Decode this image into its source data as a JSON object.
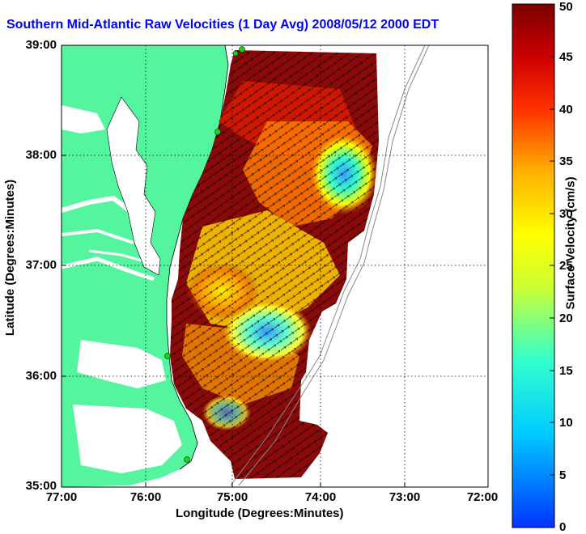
{
  "title": "Southern Mid-Atlantic Raw Velocities (1 Day Avg) 2008/05/12 2000 EDT",
  "xlabel": "Longitude (Degrees:Minutes)",
  "ylabel": "Latitude (Degrees:Minutes)",
  "x_ticks": [
    "77:00",
    "76:00",
    "75:00",
    "74:00",
    "73:00",
    "72:00"
  ],
  "y_ticks": [
    "39:00",
    "38:00",
    "37:00",
    "36:00",
    "35:00"
  ],
  "colorbar": {
    "label": "Surface Velocity (cm/s)",
    "ticks": [
      "0",
      "5",
      "10",
      "15",
      "20",
      "25",
      "30",
      "35",
      "40",
      "45",
      "50"
    ],
    "min": 0,
    "max": 50
  },
  "colors": {
    "title": "#0000ff",
    "land": "#55f5a0",
    "radar_site": "#22cc22",
    "grid": "#000000"
  },
  "map": {
    "lon_range": [
      -77,
      -72
    ],
    "lat_range": [
      35,
      39
    ],
    "grid": true
  }
}
